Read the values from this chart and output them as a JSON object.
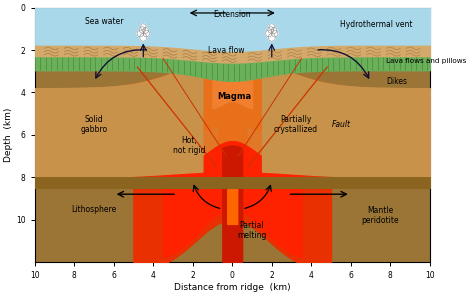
{
  "xlabel": "Distance from ridge  (km)",
  "ylabel": "Depth  (km)",
  "xlim": [
    -10,
    10
  ],
  "ylim": [
    -12,
    0
  ],
  "yticks": [
    0,
    -2,
    -4,
    -6,
    -8,
    -10
  ],
  "ytick_labels": [
    "0",
    "2",
    "4",
    "6",
    "8",
    "10"
  ],
  "xticks": [
    -10,
    -8,
    -6,
    -4,
    -2,
    0,
    2,
    4,
    6,
    8,
    10
  ],
  "xtick_labels": [
    "10",
    "8",
    "6",
    "4",
    "2",
    "0",
    "2",
    "4",
    "6",
    "8",
    "10"
  ],
  "colors": {
    "sea_water": "#A8D8EA",
    "sand": "#D4A96A",
    "sand_dark": "#C49A55",
    "green_dike": "#6AAF5A",
    "green_dike_stripe": "#4A8F3A",
    "gabbro": "#C8924A",
    "mantle": "#9B7535",
    "lithosphere": "#8B6520",
    "hot_outer": "#C86820",
    "hot_inner": "#E07828",
    "magma_chamber": "#E8701A",
    "magma_bright": "#F08030",
    "red_partial": "#E83000",
    "red_bright": "#FF2200",
    "red_dark": "#CC1800",
    "fault_line": "#CC3300",
    "arrow_dark": "#111133"
  },
  "labels": {
    "sea_water": "Sea water",
    "extension": "Extension",
    "hydrothermal_vent": "Hydrothermal vent",
    "lava_flow": "Lava flow",
    "lava_flows_pillows": "Lava flows and pillows",
    "dikes": "Dikes",
    "solid_gabbro": "Solid\ngabbro",
    "magma": "Magma",
    "partially_crystallized": "Partially\ncrystallized",
    "hot_not_rigid": "Hot,\nnot rigid",
    "fault": "Fault",
    "lithosphere": "Lithosphere",
    "partial_melting": "Partial\nmelting",
    "mantle_peridotite": "Mantle\nperidotite"
  }
}
